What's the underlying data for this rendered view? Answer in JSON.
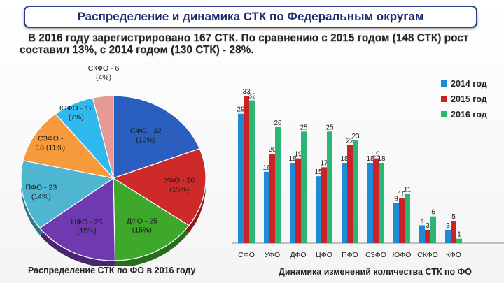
{
  "header": {
    "title": "Распределение и динамика СТК по Федеральным округам"
  },
  "intro": "В 2016 году зарегистрировано 167 СТК. По сравнению с 2015 годом (148 СТК) рост составил 13%, с 2014 годом (130 СТК) - 28%.",
  "chart_data": [
    {
      "type": "pie",
      "title": "Распределение СТК по ФО в 2016 году",
      "slices": [
        {
          "name": "СФО",
          "value": 32,
          "pct": "(19%)",
          "color": "#2a5fbf"
        },
        {
          "name": "УФО",
          "value": 26,
          "pct": "(15%)",
          "color": "#cf2a2a"
        },
        {
          "name": "ДФО",
          "value": 25,
          "pct": "(15%)",
          "color": "#3da82a"
        },
        {
          "name": "ЦФО",
          "value": 25,
          "pct": "(15%)",
          "color": "#6f3ab0"
        },
        {
          "name": "ПФО",
          "value": 23,
          "pct": "(14%)",
          "color": "#4fb6d2"
        },
        {
          "name": "СЗФО",
          "value": 18,
          "pct": "(11%)",
          "color": "#f79a3c"
        },
        {
          "name": "ЮФО",
          "value": 12,
          "pct": "(7%)",
          "color": "#2fb9ee"
        },
        {
          "name": "СКФО",
          "value": 6,
          "pct": "(4%)",
          "color": "#e59a96"
        }
      ],
      "labels": [
        {
          "line1": "СФО - 32",
          "line2": "(19%)"
        },
        {
          "line1": "УФО - 26",
          "line2": "(15%)"
        },
        {
          "line1": "ДФО - 25",
          "line2": "(15%)"
        },
        {
          "line1": "ЦФО - 25",
          "line2": "(15%)"
        },
        {
          "line1": "ПФО - 23",
          "line2": "(14%)"
        },
        {
          "line1": "СЗФО -",
          "line2": "18 (11%)"
        },
        {
          "line1": "ЮФО - 12",
          "line2": "(7%)"
        },
        {
          "line1": "СКФО - 6",
          "line2": "(4%)"
        }
      ]
    },
    {
      "type": "bar",
      "title": "Динамика изменений количества СТК по ФО",
      "categories": [
        "СФО",
        "УФО",
        "ДФО",
        "ЦФО",
        "ПФО",
        "СЗФО",
        "ЮФО",
        "СКФО",
        "КФО"
      ],
      "series": [
        {
          "name": "2014 год",
          "color": "#1f8ad6",
          "values": [
            29,
            16,
            18,
            15,
            18,
            18,
            9,
            4,
            3
          ]
        },
        {
          "name": "2015 год",
          "color": "#cc2126",
          "values": [
            33,
            20,
            19,
            17,
            22,
            19,
            10,
            3,
            5
          ]
        },
        {
          "name": "2016 год",
          "color": "#2bb673",
          "values": [
            32,
            26,
            25,
            25,
            23,
            18,
            11,
            6,
            1
          ]
        }
      ],
      "ylim": [
        0,
        36
      ]
    }
  ]
}
